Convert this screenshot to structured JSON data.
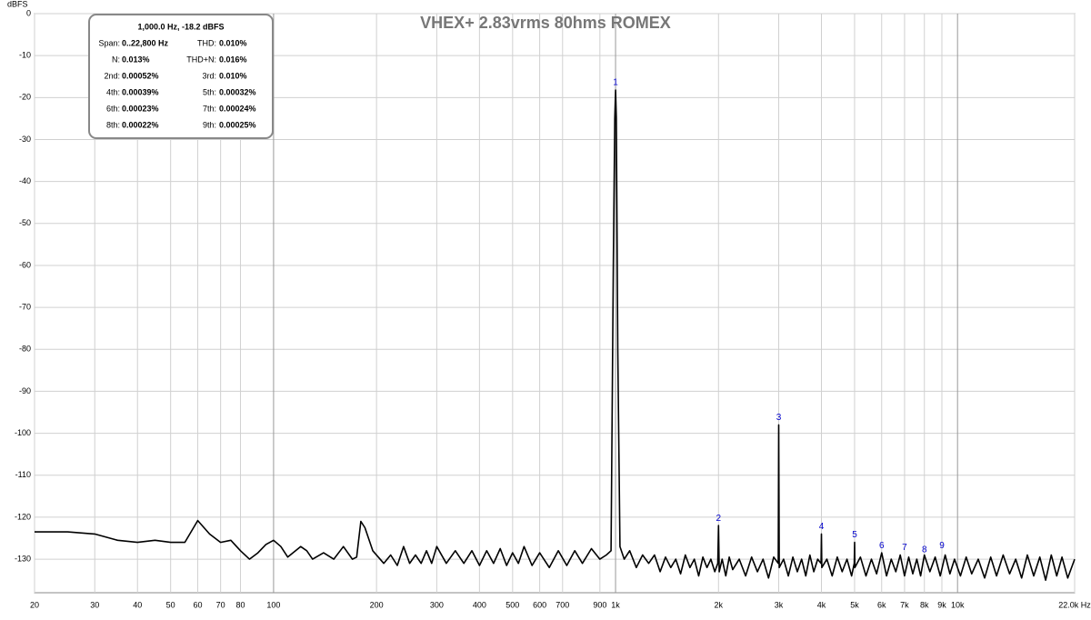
{
  "chart_data": {
    "type": "line",
    "title": "VHEX+ 2.83vrms 80hms ROMEX",
    "y_label": "dBFS",
    "log_x": true,
    "grid": true,
    "color": "#000000",
    "xlim": [
      20,
      22000
    ],
    "ylim": [
      -138,
      0
    ],
    "yticks": [
      0,
      -10,
      -20,
      -30,
      -40,
      -50,
      -60,
      -70,
      -80,
      -90,
      -100,
      -110,
      -120,
      -130
    ],
    "xticks": [
      20,
      30,
      40,
      50,
      60,
      70,
      80,
      100,
      200,
      300,
      400,
      500,
      600,
      700,
      900,
      {
        "value": 1000,
        "label": "1k"
      },
      {
        "value": 2000,
        "label": "2k"
      },
      {
        "value": 3000,
        "label": "3k"
      },
      {
        "value": 4000,
        "label": "4k"
      },
      {
        "value": 5000,
        "label": "5k"
      },
      {
        "value": 6000,
        "label": "6k"
      },
      {
        "value": 7000,
        "label": "7k"
      },
      {
        "value": 8000,
        "label": "8k"
      },
      {
        "value": 9000,
        "label": "9k"
      },
      {
        "value": 10000,
        "label": "10k"
      },
      {
        "value": 22000,
        "label": "22.0k Hz"
      }
    ],
    "x": [
      20,
      25,
      30,
      35,
      40,
      45,
      50,
      55,
      60,
      65,
      70,
      75,
      80,
      85,
      90,
      95,
      100,
      105,
      110,
      120,
      125,
      130,
      140,
      150,
      160,
      170,
      175,
      180,
      185,
      195,
      210,
      220,
      230,
      240,
      250,
      260,
      270,
      280,
      290,
      300,
      320,
      340,
      360,
      380,
      400,
      420,
      440,
      460,
      480,
      500,
      520,
      540,
      570,
      600,
      640,
      680,
      720,
      760,
      800,
      850,
      900,
      940,
      970,
      985,
      995,
      1000,
      1005,
      1015,
      1030,
      1060,
      1100,
      1150,
      1200,
      1250,
      1300,
      1350,
      1400,
      1450,
      1500,
      1550,
      1600,
      1650,
      1700,
      1750,
      1800,
      1850,
      1900,
      1950,
      1990,
      2000,
      2010,
      2050,
      2100,
      2150,
      2200,
      2300,
      2400,
      2500,
      2600,
      2700,
      2800,
      2900,
      2990,
      3000,
      3010,
      3100,
      3200,
      3300,
      3400,
      3500,
      3600,
      3700,
      3800,
      3900,
      3990,
      4000,
      4010,
      4150,
      4300,
      4450,
      4600,
      4750,
      4900,
      4990,
      5000,
      5010,
      5200,
      5400,
      5600,
      5800,
      6000,
      6200,
      6400,
      6600,
      6800,
      7000,
      7200,
      7400,
      7600,
      7800,
      8000,
      8300,
      8600,
      8900,
      9200,
      9500,
      9800,
      10200,
      10600,
      11000,
      11500,
      12000,
      12500,
      13000,
      13600,
      14200,
      14800,
      15400,
      16000,
      16700,
      17400,
      18100,
      18800,
      19500,
      20200,
      21000,
      22000
    ],
    "values": [
      -123.5,
      -123.5,
      -124,
      -125.5,
      -126,
      -125.5,
      -126,
      -126,
      -120.8,
      -124,
      -126,
      -125.5,
      -128,
      -130,
      -128.5,
      -126.5,
      -125.5,
      -127,
      -129.5,
      -127,
      -128,
      -130,
      -128.5,
      -130,
      -127,
      -130,
      -129.5,
      -121,
      -122.5,
      -128,
      -131,
      -129,
      -131.5,
      -127,
      -131,
      -129,
      -131,
      -128,
      -131,
      -127,
      -131,
      -128,
      -131,
      -128,
      -131.5,
      -128,
      -131,
      -127.5,
      -131.5,
      -128.5,
      -131,
      -127,
      -131.5,
      -128.5,
      -132,
      -128,
      -131.5,
      -128,
      -131,
      -127.5,
      -130,
      -129,
      -128,
      -60,
      -25,
      -18.2,
      -25,
      -80,
      -127,
      -130,
      -128,
      -132,
      -129,
      -131,
      -129,
      -133,
      -129.5,
      -132,
      -130,
      -133.5,
      -129,
      -132,
      -130,
      -134,
      -129.5,
      -132,
      -130,
      -133,
      -131,
      -122,
      -133,
      -130,
      -134,
      -129.5,
      -132.5,
      -130,
      -134,
      -129.5,
      -133,
      -130,
      -134.5,
      -129.5,
      -131,
      -98,
      -132,
      -130,
      -134,
      -129.5,
      -133,
      -130,
      -134,
      -129,
      -133,
      -130,
      -131,
      -124,
      -132,
      -130,
      -134,
      -129.5,
      -133,
      -130,
      -134,
      -131,
      -126,
      -132,
      -129.5,
      -134,
      -130,
      -133.5,
      -128.5,
      -134,
      -130,
      -133,
      -129,
      -134,
      -129.5,
      -133.5,
      -130,
      -134,
      -129,
      -133,
      -129.5,
      -134,
      -129,
      -133.5,
      -130,
      -134,
      -129.5,
      -133.5,
      -130,
      -134.5,
      -129.5,
      -134,
      -129,
      -133.5,
      -130,
      -134.5,
      -129,
      -134,
      -129.5,
      -135,
      -129,
      -134,
      -129.5,
      -134.5,
      -130
    ],
    "harmonics": {
      "labels": [
        "1",
        "2",
        "3",
        "4",
        "5",
        "6",
        "7",
        "8",
        "9"
      ],
      "x": [
        1000,
        2000,
        3000,
        4000,
        5000,
        6000,
        7000,
        8000,
        9000
      ],
      "values": [
        -18.2,
        -122,
        -98,
        -124,
        -126,
        -128.5,
        -129,
        -129.5,
        -128.5
      ],
      "color": "#0000cc"
    }
  },
  "info_box": {
    "header": "1,000.0 Hz, -18.2 dBFS",
    "rows": [
      [
        "Span:",
        "0..22,800 Hz",
        "THD:",
        "0.010%"
      ],
      [
        "N:",
        "0.013%",
        "THD+N:",
        "0.016%"
      ],
      [
        "2nd:",
        "0.00052%",
        "3rd:",
        "0.010%"
      ],
      [
        "4th:",
        "0.00039%",
        "5th:",
        "0.00032%"
      ],
      [
        "6th:",
        "0.00023%",
        "7th:",
        "0.00024%"
      ],
      [
        "8th:",
        "0.00022%",
        "9th:",
        "0.00025%"
      ]
    ]
  }
}
